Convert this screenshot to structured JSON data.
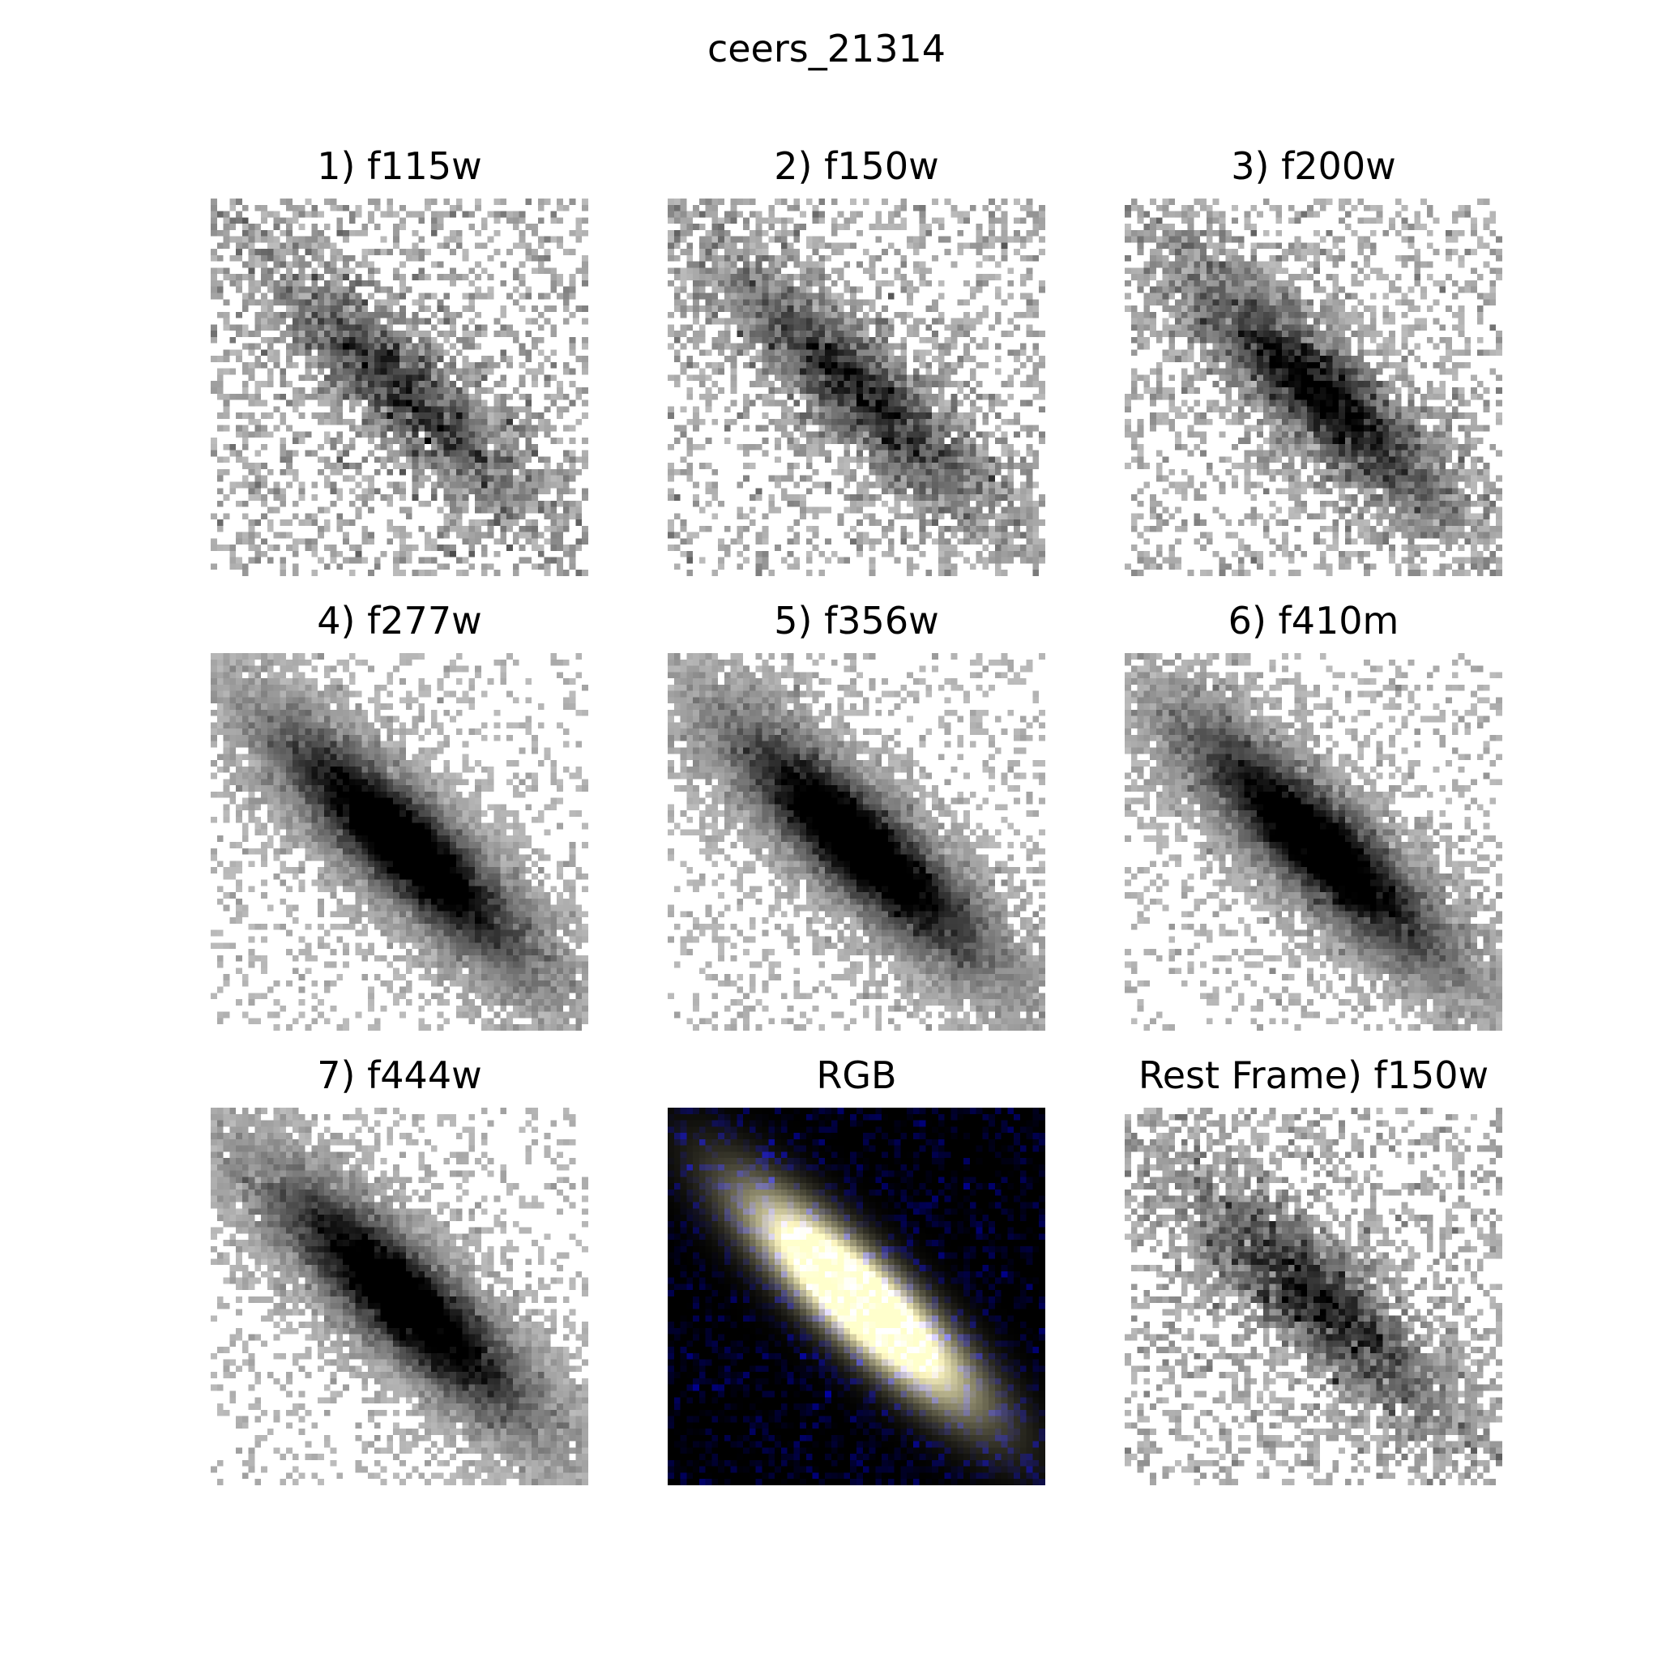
{
  "figure": {
    "title": "ceers_21314"
  },
  "panels": [
    {
      "title": "1) f115w",
      "kind": "filter",
      "colormap": "gray_r",
      "noise": 0.95,
      "core": 0.55,
      "halo": 0.35
    },
    {
      "title": "2) f150w",
      "kind": "filter",
      "colormap": "gray_r",
      "noise": 0.85,
      "core": 0.62,
      "halo": 0.4
    },
    {
      "title": "3) f200w",
      "kind": "filter",
      "colormap": "gray_r",
      "noise": 0.8,
      "core": 0.75,
      "halo": 0.5
    },
    {
      "title": "4) f277w",
      "kind": "filter",
      "colormap": "gray_r",
      "noise": 0.45,
      "core": 0.95,
      "halo": 0.7
    },
    {
      "title": "5) f356w",
      "kind": "filter",
      "colormap": "gray_r",
      "noise": 0.45,
      "core": 0.95,
      "halo": 0.72
    },
    {
      "title": "6) f410m",
      "kind": "filter",
      "colormap": "gray_r",
      "noise": 0.5,
      "core": 0.92,
      "halo": 0.68
    },
    {
      "title": "7) f444w",
      "kind": "filter",
      "colormap": "gray_r",
      "noise": 0.45,
      "core": 0.95,
      "halo": 0.72
    },
    {
      "title": "RGB",
      "kind": "rgb",
      "colormap": "rgb"
    },
    {
      "title": "Rest Frame) f150w",
      "kind": "filter",
      "colormap": "gray_r",
      "noise": 0.85,
      "core": 0.62,
      "halo": 0.4
    }
  ]
}
